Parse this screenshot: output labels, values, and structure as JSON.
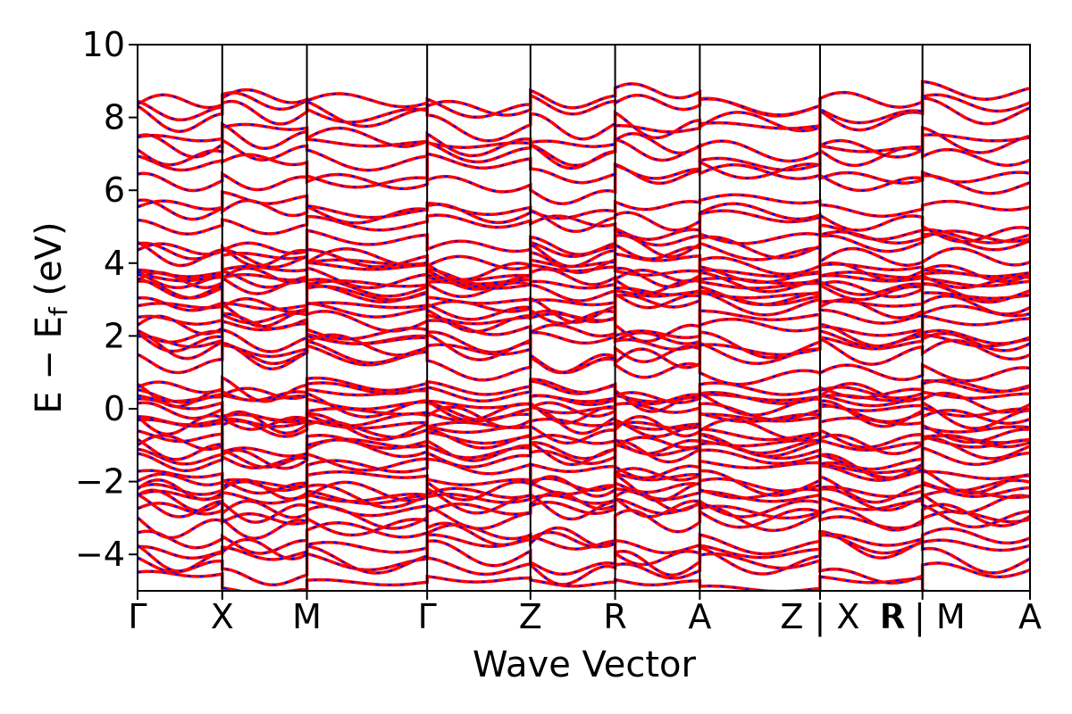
{
  "chart_data": {
    "type": "line",
    "title": "",
    "xlabel": "Wave Vector",
    "ylabel_parts": {
      "main": "E − E",
      "sub": "f",
      "unit": " (eV)"
    },
    "ylim": [
      -5,
      10
    ],
    "xlim": [
      0,
      10.54
    ],
    "y_ticks": [
      {
        "value": 10,
        "label": "10"
      },
      {
        "value": 8,
        "label": "8"
      },
      {
        "value": 6,
        "label": "6"
      },
      {
        "value": 4,
        "label": "4"
      },
      {
        "value": 2,
        "label": "2"
      },
      {
        "value": 0,
        "label": "0"
      },
      {
        "value": -2,
        "label": "−2"
      },
      {
        "value": -4,
        "label": "−4"
      }
    ],
    "k_points": [
      {
        "label": "Γ",
        "x": 0.0
      },
      {
        "label": "X",
        "x": 1.0
      },
      {
        "label": "M",
        "x": 2.0
      },
      {
        "label": "Γ",
        "x": 3.42
      },
      {
        "label": "Z",
        "x": 4.64
      },
      {
        "label": "R",
        "x": 5.64
      },
      {
        "label": "A",
        "x": 6.64
      },
      {
        "label": "Z | X",
        "x": 8.06
      },
      {
        "label": "R | M",
        "x": 9.27
      },
      {
        "label": "A",
        "x": 10.54
      }
    ],
    "extra_tick_label": {
      "label": "R",
      "x": 8.93
    },
    "grid": false,
    "colors": {
      "line": "#ff0000",
      "dash": "#0000ff",
      "axis": "#000000"
    },
    "band_energy_ranges": [
      {
        "from": -5,
        "to": -3.3,
        "count": 6
      },
      {
        "from": -3.2,
        "to": -1.0,
        "count": 12
      },
      {
        "from": -0.9,
        "to": 0.6,
        "count": 10
      },
      {
        "from": 1.0,
        "to": 2.7,
        "count": 8
      },
      {
        "from": 2.8,
        "to": 4.2,
        "count": 10
      },
      {
        "from": 4.4,
        "to": 5.6,
        "count": 4
      },
      {
        "from": 6.0,
        "to": 8.5,
        "count": 8
      }
    ]
  }
}
